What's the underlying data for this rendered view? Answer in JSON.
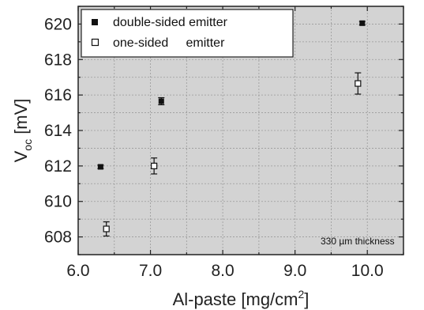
{
  "chart_data": {
    "type": "scatter",
    "xlabel": "Al-paste [mg/cm",
    "xlabel_sup": "2",
    "xlabel_end": "]",
    "ylabel_main": "V",
    "ylabel_sub": "oc",
    "ylabel_unit": " [mV]",
    "xlim": [
      6.0,
      10.5
    ],
    "ylim": [
      607.0,
      621.0
    ],
    "x_ticks": [
      6.0,
      7.0,
      8.0,
      9.0,
      10.0
    ],
    "x_tick_labels": [
      "6.0",
      "7.0",
      "8.0",
      "9.0",
      "10.0"
    ],
    "y_ticks": [
      608,
      610,
      612,
      614,
      616,
      618,
      620
    ],
    "y_tick_labels": [
      "608",
      "610",
      "612",
      "614",
      "616",
      "618",
      "620"
    ],
    "grid": true,
    "legend_position": "top-left",
    "annotation": "330 µm thickness",
    "series": [
      {
        "name": "double-sided emitter",
        "marker": "filled-square",
        "color": "#111111",
        "points": [
          {
            "x": 6.31,
            "y": 611.95,
            "err": 0.1
          },
          {
            "x": 7.15,
            "y": 615.65,
            "err": 0.2
          },
          {
            "x": 9.93,
            "y": 620.05,
            "err": 0.1
          }
        ]
      },
      {
        "name": "one-sided     emitter",
        "marker": "open-square",
        "color": "#111111",
        "points": [
          {
            "x": 6.39,
            "y": 608.45,
            "err": 0.4
          },
          {
            "x": 7.05,
            "y": 612.0,
            "err": 0.45
          },
          {
            "x": 9.87,
            "y": 616.65,
            "err": 0.6
          }
        ]
      }
    ]
  }
}
